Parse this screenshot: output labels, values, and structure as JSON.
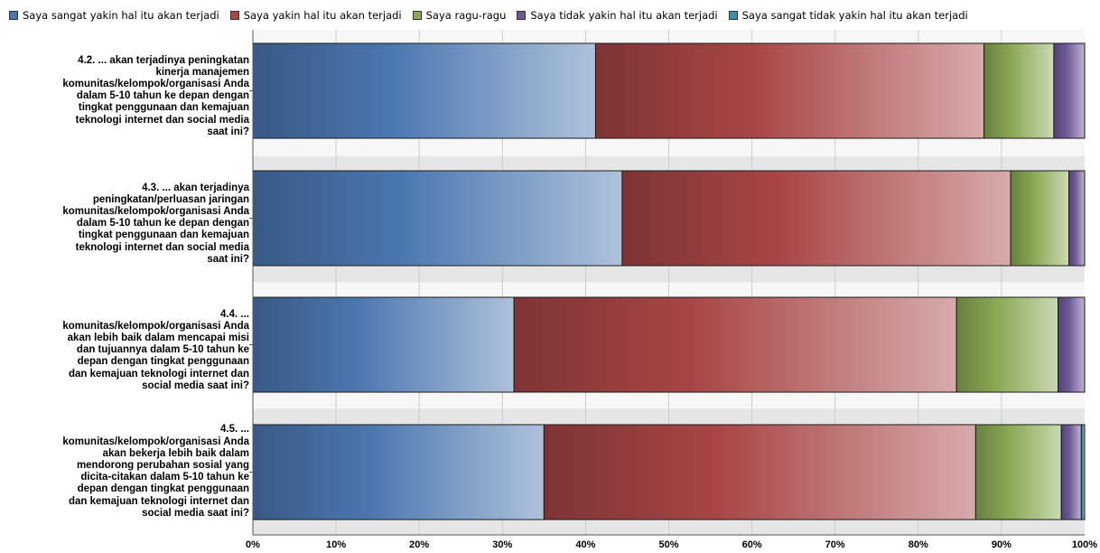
{
  "chart_data": {
    "type": "bar",
    "orientation": "horizontal",
    "stacked": true,
    "normalized_percent": true,
    "legend_position": "top",
    "grid": true,
    "xlim": [
      0,
      100
    ],
    "x_ticks": [
      "0%",
      "10%",
      "20%",
      "30%",
      "40%",
      "50%",
      "60%",
      "70%",
      "80%",
      "90%",
      "100%"
    ],
    "categories": [
      "4.2. ... akan terjadinya peningkatan kinerja manajemen komunitas/kelompok/organisasi Anda dalam 5-10 tahun ke depan dengan tingkat penggunaan dan kemajuan teknologi internet dan social media saat ini?",
      "4.3. ... akan terjadinya peningkatan/perluasan jaringan komunitas/kelompok/organisasi Anda dalam 5-10 tahun ke depan dengan tingkat penggunaan dan kemajuan teknologi internet dan social media saat ini?",
      "4.4. ... komunitas/kelompok/organisasi Anda akan lebih baik dalam mencapai misi dan tujuannya dalam 5-10 tahun ke depan dengan tingkat penggunaan dan kemajuan teknologi internet dan social media saat ini?",
      "4.5. ... komunitas/kelompok/organisasi Anda akan bekerja lebih baik dalam mendorong perubahan sosial yang dicita-citakan dalam 5-10 tahun ke depan dengan tingkat penggunaan dan kemajuan teknologi internet dan social media saat ini?"
    ],
    "category_lines": [
      [
        "4.2. ... akan terjadinya peningkatan",
        "kinerja manajemen",
        "komunitas/kelompok/organisasi Anda",
        "dalam 5-10 tahun ke depan dengan",
        "tingkat penggunaan dan kemajuan",
        "teknologi internet dan social media",
        "saat ini?"
      ],
      [
        "4.3. ... akan terjadinya",
        "peningkatan/perluasan jaringan",
        "komunitas/kelompok/organisasi Anda",
        "dalam 5-10 tahun ke depan dengan",
        "tingkat penggunaan dan kemajuan",
        "teknologi internet dan social media",
        "saat ini?"
      ],
      [
        "4.4. ...",
        "komunitas/kelompok/organisasi Anda",
        "akan lebih baik dalam mencapai misi",
        "dan tujuannya dalam 5-10 tahun ke",
        "depan dengan tingkat penggunaan",
        "dan kemajuan teknologi internet dan",
        "social media saat ini?"
      ],
      [
        "4.5. ...",
        "komunitas/kelompok/organisasi Anda",
        "akan bekerja lebih baik dalam",
        "mendorong perubahan sosial yang",
        "dicita-citakan dalam 5-10 tahun ke",
        "depan dengan tingkat penggunaan",
        "dan kemajuan teknologi internet dan",
        "social media saat ini?"
      ]
    ],
    "series": [
      {
        "name": "Saya sangat yakin hal itu akan terjadi",
        "color": "#4a77b0",
        "values": [
          41.2,
          44.4,
          31.4,
          35.0
        ]
      },
      {
        "name": "Saya yakin hal itu akan terjadi",
        "color": "#a84545",
        "values": [
          46.7,
          46.7,
          53.2,
          51.9
        ]
      },
      {
        "name": "Saya ragu-ragu",
        "color": "#8aaa55",
        "values": [
          8.4,
          7.0,
          12.2,
          10.3
        ]
      },
      {
        "name": "Saya tidak yakin hal itu akan terjadi",
        "color": "#6e5898",
        "values": [
          3.7,
          1.9,
          3.2,
          2.4
        ]
      },
      {
        "name": "Saya sangat tidak yakin hal itu akan terjadi",
        "color": "#3e8fa8",
        "values": [
          0,
          0,
          0,
          0.4
        ]
      }
    ]
  }
}
